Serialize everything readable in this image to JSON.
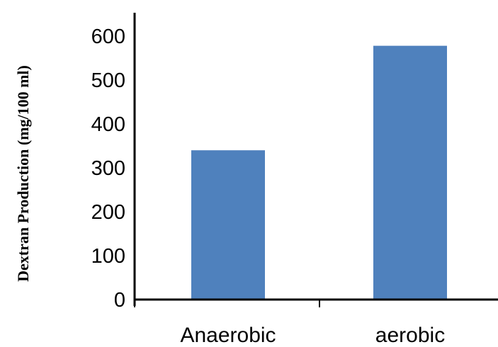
{
  "chart_data": {
    "type": "bar",
    "title": "",
    "xlabel": "",
    "ylabel": "Dextran Production (mg/100 ml)",
    "categories": [
      "Anaerobic",
      "aerobic"
    ],
    "values": [
      340,
      578
    ],
    "ylim": [
      0,
      600
    ],
    "yticks": [
      0,
      100,
      200,
      300,
      400,
      500,
      600
    ],
    "grid": false,
    "legend": "none",
    "colors": {
      "bar": "#4f81bd",
      "axis": "#000000"
    }
  }
}
